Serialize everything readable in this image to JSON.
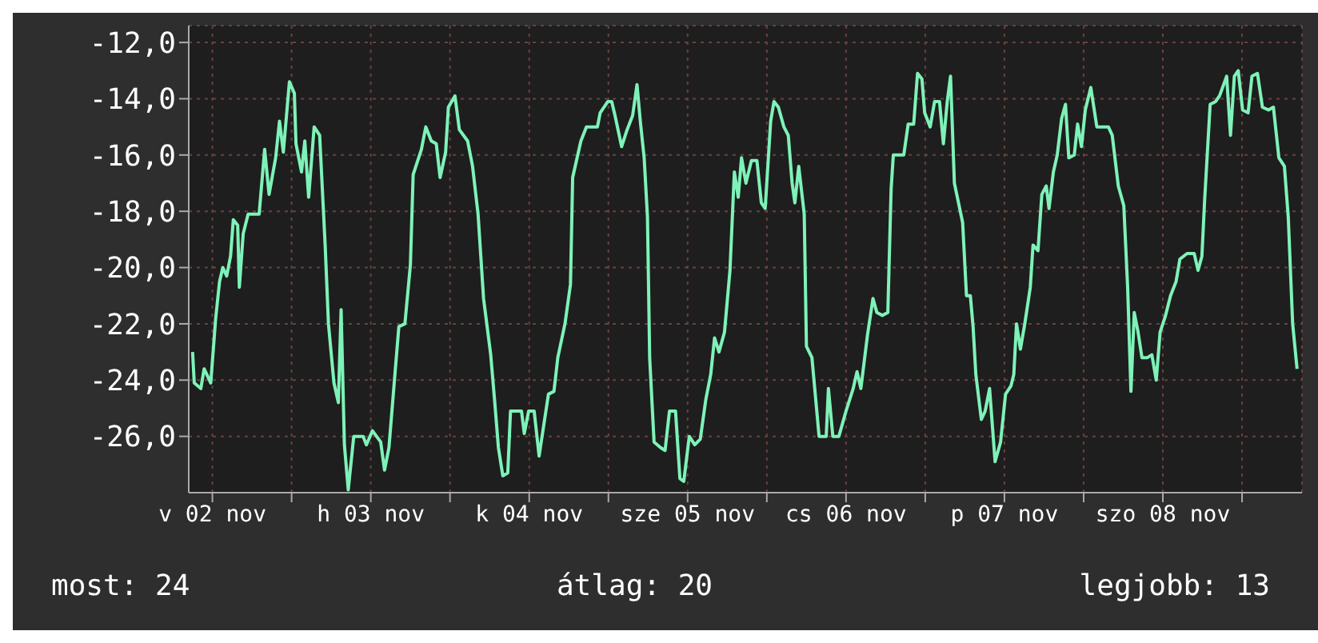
{
  "chart_data": {
    "type": "line",
    "x": [
      "--11-02T09:00",
      "--11-02T09:15",
      "--11-02T10:15",
      "--11-02T10:45",
      "--11-02T11:45",
      "--11-02T12:30",
      "--11-02T13:05",
      "--11-02T13:35",
      "--11-02T14:10",
      "--11-02T14:45",
      "--11-02T15:10",
      "--11-02T15:50",
      "--11-02T16:05",
      "--11-02T16:40",
      "--11-02T17:25",
      "--11-02T19:05",
      "--11-02T19:55",
      "--11-02T20:35",
      "--11-02T21:35",
      "--11-02T22:10",
      "--11-02T22:45",
      "--11-02T23:40",
      "--11-03T00:25",
      "--11-03T00:40",
      "--11-03T01:30",
      "--11-03T02:00",
      "--11-03T02:35",
      "--11-03T03:25",
      "--11-03T04:15",
      "--11-03T05:05",
      "--11-03T05:35",
      "--11-03T06:25",
      "--11-03T07:05",
      "--11-03T07:30",
      "--11-03T08:00",
      "--11-03T08:35",
      "--11-03T09:25",
      "--11-03T10:50",
      "--11-03T11:20",
      "--11-03T12:15",
      "--11-03T13:30",
      "--11-03T14:05",
      "--11-03T14:45",
      "--11-03T15:35",
      "--11-03T16:15",
      "--11-03T17:10",
      "--11-03T18:00",
      "--11-03T18:25",
      "--11-03T19:40",
      "--11-03T20:20",
      "--11-03T21:10",
      "--11-03T21:55",
      "--11-03T22:30",
      "--11-03T23:20",
      "--11-03T23:45",
      "--11-04T00:45",
      "--11-04T01:25",
      "--11-04T02:40",
      "--11-04T03:25",
      "--11-04T04:15",
      "--11-04T05:05",
      "--11-04T06:10",
      "--11-04T06:45",
      "--11-04T07:20",
      "--11-04T08:00",
      "--11-04T08:45",
      "--11-04T09:10",
      "--11-04T10:50",
      "--11-04T11:15",
      "--11-04T11:55",
      "--11-04T12:45",
      "--11-04T13:30",
      "--11-04T14:20",
      "--11-04T14:55",
      "--11-04T15:45",
      "--11-04T16:20",
      "--11-04T17:25",
      "--11-04T18:15",
      "--11-04T18:35",
      "--11-04T19:50",
      "--11-04T20:40",
      "--11-04T22:20",
      "--11-04T22:45",
      "--11-04T23:55",
      "--11-05T00:30",
      "--11-05T01:00",
      "--11-05T02:00",
      "--11-05T02:50",
      "--11-05T03:40",
      "--11-05T04:20",
      "--11-05T04:50",
      "--11-05T05:25",
      "--11-05T05:55",
      "--11-05T06:15",
      "--11-05T06:55",
      "--11-05T07:55",
      "--11-05T08:35",
      "--11-05T09:15",
      "--11-05T10:10",
      "--11-05T10:50",
      "--11-05T11:25",
      "--11-05T12:15",
      "--11-05T13:05",
      "--11-05T13:55",
      "--11-05T14:45",
      "--11-05T15:30",
      "--11-05T16:05",
      "--11-05T16:45",
      "--11-05T17:35",
      "--11-05T18:25",
      "--11-05T19:05",
      "--11-05T19:40",
      "--11-05T20:10",
      "--11-05T20:50",
      "--11-05T21:40",
      "--11-05T22:30",
      "--11-05T23:10",
      "--11-05T23:45",
      "--11-06T00:35",
      "--11-06T01:05",
      "--11-06T01:45",
      "--11-06T02:35",
      "--11-06T03:15",
      "--11-06T03:50",
      "--11-06T04:15",
      "--11-06T04:50",
      "--11-06T05:40",
      "--11-06T06:00",
      "--11-06T06:50",
      "--11-06T07:55",
      "--11-06T09:00",
      "--11-06T09:20",
      "--11-06T10:00",
      "--11-06T10:55",
      "--11-06T12:00",
      "--11-06T13:05",
      "--11-06T13:40",
      "--11-06T14:15",
      "--11-06T15:15",
      "--11-06T16:05",
      "--11-06T16:40",
      "--11-06T17:30",
      "--11-06T18:20",
      "--11-06T18:50",
      "--11-06T19:10",
      "--11-06T20:45",
      "--11-06T21:25",
      "--11-06T22:15",
      "--11-06T22:50",
      "--11-06T23:30",
      "--11-06T23:55",
      "--11-07T00:45",
      "--11-07T01:25",
      "--11-07T02:10",
      "--11-07T02:45",
      "--11-07T03:20",
      "--11-07T03:50",
      "--11-07T04:25",
      "--11-07T05:40",
      "--11-07T06:15",
      "--11-07T06:50",
      "--11-07T07:15",
      "--11-07T07:40",
      "--11-07T08:30",
      "--11-07T09:05",
      "--11-07T09:45",
      "--11-07T10:35",
      "--11-07T11:25",
      "--11-07T12:10",
      "--11-07T13:00",
      "--11-07T13:25",
      "--11-07T13:50",
      "--11-07T14:25",
      "--11-07T15:05",
      "--11-07T15:55",
      "--11-07T16:20",
      "--11-07T17:05",
      "--11-07T17:40",
      "--11-07T18:20",
      "--11-07T18:45",
      "--11-07T19:25",
      "--11-07T20:00",
      "--11-07T20:40",
      "--11-07T21:15",
      "--11-07T21:45",
      "--11-07T22:35",
      "--11-07T23:05",
      "--11-07T23:40",
      "--11-08T00:15",
      "--11-08T01:05",
      "--11-08T02:00",
      "--11-08T03:45",
      "--11-08T04:20",
      "--11-08T05:15",
      "--11-08T06:05",
      "--11-08T06:40",
      "--11-08T07:10",
      "--11-08T07:40",
      "--11-08T08:15",
      "--11-08T08:50",
      "--11-08T09:40",
      "--11-08T10:20",
      "--11-08T11:00",
      "--11-08T11:35",
      "--11-08T12:25",
      "--11-08T13:10",
      "--11-08T14:00",
      "--11-08T14:35",
      "--11-08T15:40",
      "--11-08T16:45",
      "--11-08T17:20",
      "--11-08T17:55",
      "--11-08T18:20",
      "--11-08T19:10",
      "--11-08T20:00",
      "--11-08T20:35",
      "--11-08T21:40",
      "--11-08T22:15",
      "--11-08T22:50",
      "--11-08T23:25",
      "--11-09T00:05",
      "--11-09T00:55",
      "--11-09T01:30",
      "--11-09T02:20",
      "--11-09T03:05",
      "--11-09T04:00",
      "--11-09T04:45",
      "--11-09T05:35",
      "--11-09T06:25",
      "--11-09T07:00",
      "--11-09T07:40",
      "--11-09T08:20"
    ],
    "series": [
      {
        "color": "#7ef2b8",
        "values": [
          -23.0,
          -24.1,
          -24.3,
          -23.6,
          -24.1,
          -21.8,
          -20.5,
          -20.0,
          -20.3,
          -19.6,
          -18.3,
          -18.5,
          -20.7,
          -18.8,
          -18.1,
          -18.1,
          -15.8,
          -17.4,
          -16.1,
          -14.8,
          -15.9,
          -13.4,
          -13.8,
          -15.6,
          -16.6,
          -15.5,
          -17.5,
          -15.0,
          -15.3,
          -19.2,
          -22.0,
          -24.1,
          -24.8,
          -21.5,
          -26.3,
          -27.9,
          -26.0,
          -26.0,
          -26.3,
          -25.8,
          -26.2,
          -27.2,
          -26.4,
          -24.0,
          -22.1,
          -22.0,
          -19.9,
          -16.7,
          -15.8,
          -15.0,
          -15.5,
          -15.6,
          -16.8,
          -15.9,
          -14.3,
          -13.9,
          -15.1,
          -15.5,
          -16.4,
          -18.1,
          -21.1,
          -23.1,
          -24.7,
          -26.4,
          -27.4,
          -27.3,
          -25.1,
          -25.1,
          -25.9,
          -25.1,
          -25.1,
          -26.7,
          -25.4,
          -24.5,
          -24.4,
          -23.2,
          -22.0,
          -20.6,
          -16.8,
          -15.5,
          -15.0,
          -15.0,
          -14.5,
          -14.1,
          -14.1,
          -14.6,
          -15.7,
          -15.1,
          -14.6,
          -13.5,
          -14.8,
          -16.1,
          -18.2,
          -23.2,
          -26.2,
          -26.4,
          -26.5,
          -25.1,
          -25.1,
          -27.5,
          -27.6,
          -26.0,
          -26.3,
          -26.1,
          -24.7,
          -23.8,
          -22.5,
          -23.0,
          -22.3,
          -20.1,
          -16.6,
          -17.5,
          -16.1,
          -17.0,
          -16.2,
          -16.2,
          -17.7,
          -17.9,
          -14.8,
          -14.1,
          -14.3,
          -15.0,
          -15.3,
          -17.0,
          -17.7,
          -16.4,
          -18.1,
          -22.8,
          -23.2,
          -26.0,
          -26.0,
          -24.3,
          -26.0,
          -26.0,
          -25.1,
          -24.3,
          -23.7,
          -24.3,
          -22.4,
          -21.1,
          -21.6,
          -21.7,
          -21.6,
          -17.2,
          -16.0,
          -16.0,
          -14.9,
          -14.9,
          -13.1,
          -13.3,
          -14.5,
          -15.0,
          -14.1,
          -14.1,
          -15.6,
          -14.1,
          -13.2,
          -17.0,
          -18.4,
          -21.0,
          -21.0,
          -22.1,
          -23.8,
          -25.4,
          -25.1,
          -24.3,
          -26.9,
          -26.2,
          -24.5,
          -24.2,
          -23.8,
          -22.0,
          -22.9,
          -22.0,
          -20.7,
          -19.2,
          -19.4,
          -17.4,
          -17.1,
          -17.9,
          -16.6,
          -16.0,
          -14.7,
          -14.2,
          -16.1,
          -16.0,
          -14.9,
          -15.7,
          -14.4,
          -13.6,
          -15.0,
          -15.0,
          -15.3,
          -17.1,
          -17.8,
          -20.7,
          -24.4,
          -21.6,
          -22.3,
          -23.2,
          -23.2,
          -23.1,
          -24.0,
          -22.3,
          -21.7,
          -21.0,
          -20.5,
          -19.7,
          -19.5,
          -19.5,
          -20.1,
          -19.6,
          -17.6,
          -14.2,
          -14.1,
          -13.9,
          -13.2,
          -15.3,
          -13.2,
          -13.0,
          -14.4,
          -14.5,
          -13.2,
          -13.1,
          -14.3,
          -14.4,
          -14.3,
          -16.1,
          -16.4,
          -18.2,
          -22.0,
          -23.6
        ]
      }
    ],
    "xlim": [
      "--11-02T08:25",
      "--11-09T09:05"
    ],
    "xticks": [
      {
        "value": "--11-02T12:00",
        "label": "v 02 nov"
      },
      {
        "value": "--11-03T00:00",
        "label": null
      },
      {
        "value": "--11-03T12:00",
        "label": "h 03 nov"
      },
      {
        "value": "--11-04T00:00",
        "label": null
      },
      {
        "value": "--11-04T12:00",
        "label": "k 04 nov"
      },
      {
        "value": "--11-05T00:00",
        "label": null
      },
      {
        "value": "--11-05T12:00",
        "label": "sze 05 nov"
      },
      {
        "value": "--11-06T00:00",
        "label": null
      },
      {
        "value": "--11-06T12:00",
        "label": "cs 06 nov"
      },
      {
        "value": "--11-07T00:00",
        "label": null
      },
      {
        "value": "--11-07T12:00",
        "label": "p 07 nov"
      },
      {
        "value": "--11-08T00:00",
        "label": null
      },
      {
        "value": "--11-08T12:00",
        "label": "szo 08 nov"
      },
      {
        "value": "--11-09T00:00",
        "label": null
      }
    ],
    "ylim": [
      -28,
      -11.4
    ],
    "yticks": [
      {
        "value": -26,
        "label": "-26,0"
      },
      {
        "value": -24,
        "label": "-24,0"
      },
      {
        "value": -22,
        "label": "-22,0"
      },
      {
        "value": -20,
        "label": "-20,0"
      },
      {
        "value": -18,
        "label": "-18,0"
      },
      {
        "value": -16,
        "label": "-16,0"
      },
      {
        "value": -14,
        "label": "-14,0"
      },
      {
        "value": -12,
        "label": "-12,0"
      }
    ],
    "grid": true,
    "marker": "none",
    "line_style": "solid",
    "annotations": [
      "most: 24",
      "átlag: 20",
      "legjobb: 13"
    ]
  }
}
